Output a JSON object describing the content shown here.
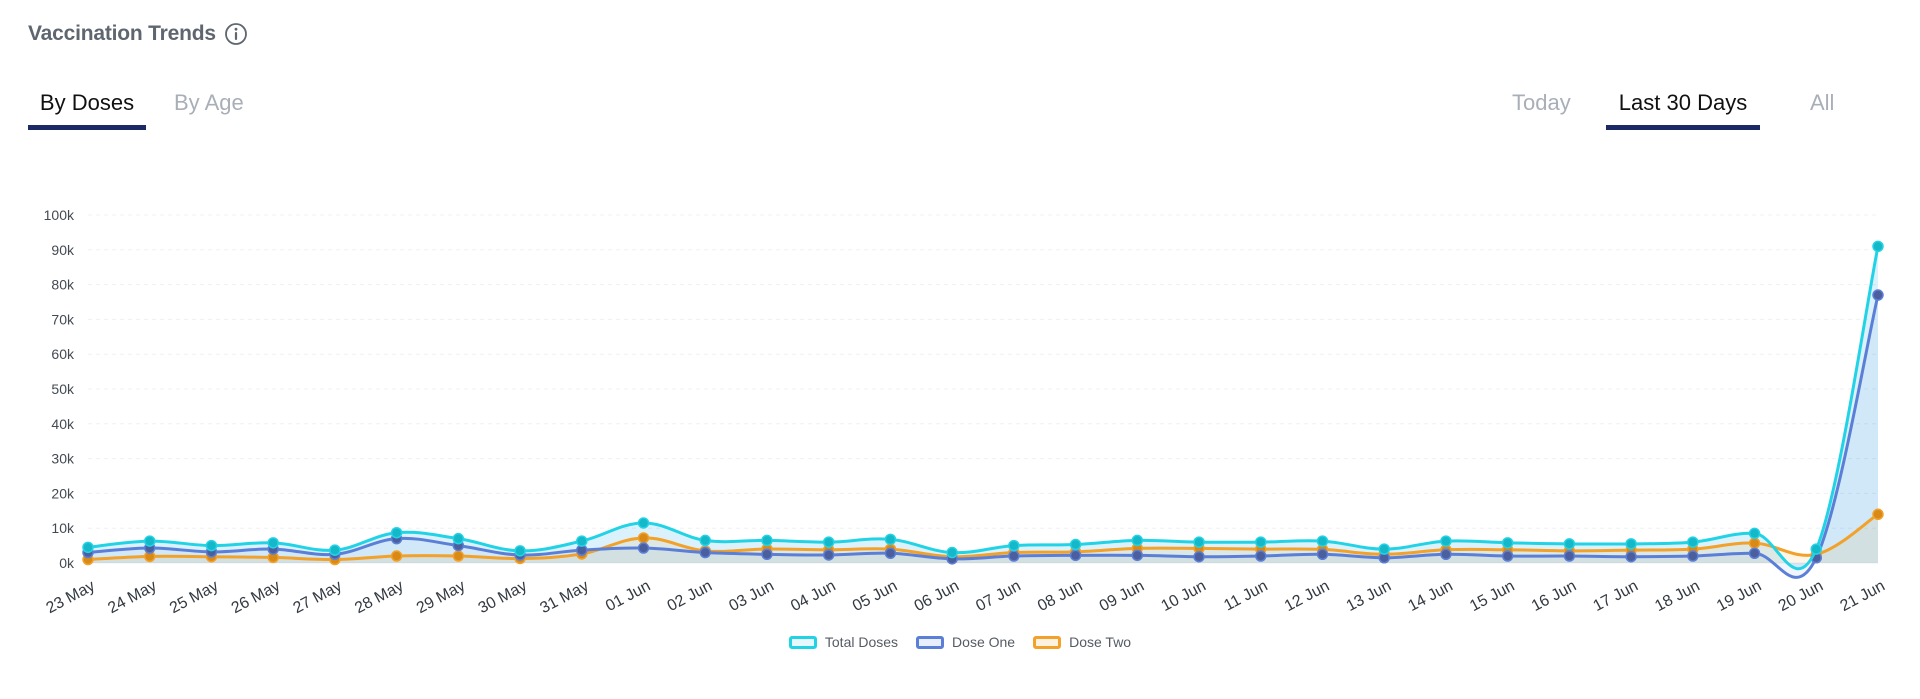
{
  "header": {
    "title": "Vaccination Trends",
    "info_icon": "info-circle-icon"
  },
  "tabs_left": [
    {
      "label": "By Doses",
      "active": true
    },
    {
      "label": "By Age",
      "active": false
    }
  ],
  "tabs_right": [
    {
      "label": "Today",
      "active": false
    },
    {
      "label": "Last 30 Days",
      "active": true
    },
    {
      "label": "All",
      "active": false
    }
  ],
  "colors": {
    "total": "#22d3e6",
    "dose_one": "#5b7fd6",
    "dose_two": "#f2a12a",
    "accent": "#1b2a66"
  },
  "chart_data": {
    "type": "area",
    "title": "",
    "xlabel": "",
    "ylabel": "",
    "ylim": [
      0,
      100000
    ],
    "y_ticks": [
      "0k",
      "10k",
      "20k",
      "30k",
      "40k",
      "50k",
      "60k",
      "70k",
      "80k",
      "90k",
      "100k"
    ],
    "grid": true,
    "legend_position": "bottom-center",
    "categories": [
      "23 May",
      "24 May",
      "25 May",
      "26 May",
      "27 May",
      "28 May",
      "29 May",
      "30 May",
      "31 May",
      "01 Jun",
      "02 Jun",
      "03 Jun",
      "04 Jun",
      "05 Jun",
      "06 Jun",
      "07 Jun",
      "08 Jun",
      "09 Jun",
      "10 Jun",
      "11 Jun",
      "12 Jun",
      "13 Jun",
      "14 Jun",
      "15 Jun",
      "16 Jun",
      "17 Jun",
      "18 Jun",
      "19 Jun",
      "20 Jun",
      "21 Jun"
    ],
    "series": [
      {
        "name": "Total Doses",
        "values": [
          4500,
          6300,
          5000,
          5800,
          3700,
          8700,
          7000,
          3500,
          6300,
          11500,
          6500,
          6500,
          6000,
          6800,
          3000,
          5000,
          5300,
          6500,
          6000,
          6000,
          6300,
          4000,
          6300,
          5800,
          5500,
          5500,
          6000,
          8500,
          4000,
          91000
        ]
      },
      {
        "name": "Dose One",
        "values": [
          3000,
          4300,
          3200,
          4000,
          2500,
          7000,
          5000,
          2300,
          3700,
          4300,
          3000,
          2500,
          2300,
          2800,
          1200,
          2000,
          2200,
          2200,
          1800,
          2000,
          2500,
          1500,
          2500,
          2000,
          2000,
          1800,
          2000,
          2800,
          1500,
          77000
        ]
      },
      {
        "name": "Dose Two",
        "values": [
          1000,
          1900,
          1800,
          1600,
          1000,
          2000,
          2000,
          1300,
          2600,
          7200,
          3500,
          4000,
          3800,
          4000,
          1800,
          3000,
          3200,
          4200,
          4200,
          4000,
          3900,
          2500,
          3800,
          3800,
          3500,
          3700,
          4000,
          5700,
          2500,
          14000
        ]
      }
    ]
  }
}
